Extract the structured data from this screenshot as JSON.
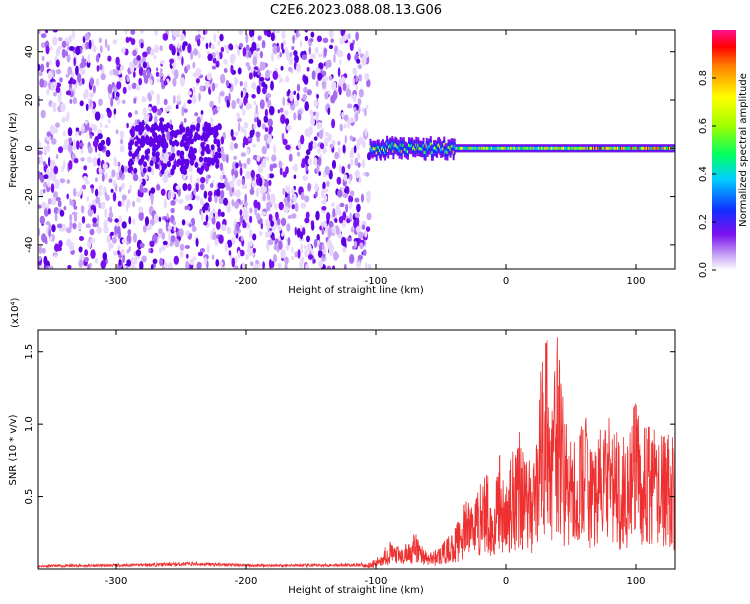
{
  "title": "C2E6.2023.088.08.13.G06",
  "chart_data": [
    {
      "type": "heatmap",
      "xlabel": "Height of straight line (km)",
      "ylabel": "Frequency (Hz)",
      "xlim": [
        -360,
        130
      ],
      "ylim": [
        -50,
        49
      ],
      "xticks": [
        -300,
        -200,
        -100,
        0,
        100
      ],
      "yticks": [
        -40,
        -20,
        0,
        20,
        40
      ],
      "colorbar": {
        "label": "Normalized spectral amplitude",
        "range": [
          0.0,
          1.0
        ],
        "ticks": [
          0.0,
          0.2,
          0.4,
          0.6,
          0.8
        ]
      },
      "description_regions": [
        {
          "x_range": [
            -360,
            -105
          ],
          "y_range": [
            -50,
            49
          ],
          "amplitude": 0.1
        },
        {
          "x_range": [
            -105,
            130
          ],
          "y_range": [
            -3,
            3
          ],
          "amplitude": 0.6
        }
      ],
      "grid": false
    },
    {
      "type": "line",
      "xlabel": "Height of straight line (km)",
      "ylabel": "SNR (10 * v/v)",
      "y_multiplier": "(x10⁴)",
      "xlim": [
        -360,
        130
      ],
      "ylim": [
        0,
        16500
      ],
      "xticks": [
        -300,
        -200,
        -100,
        0,
        100
      ],
      "yticks": [
        5000,
        10000,
        15000
      ],
      "ytick_labels": [
        "0.5",
        "1.0",
        "1.5"
      ],
      "series": [
        {
          "color": "#ee3030",
          "x": [
            -360,
            -300,
            -240,
            -200,
            -150,
            -110,
            -100,
            -90,
            -80,
            -70,
            -60,
            -50,
            -40,
            -30,
            -20,
            -15,
            -10,
            -5,
            0,
            5,
            10,
            15,
            20,
            25,
            30,
            35,
            40,
            45,
            50,
            55,
            60,
            65,
            70,
            75,
            80,
            85,
            90,
            95,
            100,
            105,
            110,
            115,
            120,
            130
          ],
          "y": [
            200,
            250,
            350,
            250,
            250,
            300,
            600,
            1800,
            1300,
            2300,
            1000,
            1500,
            2500,
            4500,
            5500,
            6500,
            4000,
            7500,
            5000,
            8000,
            9500,
            7500,
            6500,
            10500,
            16500,
            10000,
            15500,
            9500,
            8500,
            7500,
            11000,
            8000,
            8000,
            9500,
            9500,
            9000,
            8500,
            9500,
            10500,
            9000,
            9000,
            9000,
            8500,
            8500
          ]
        }
      ],
      "grid": false
    }
  ]
}
